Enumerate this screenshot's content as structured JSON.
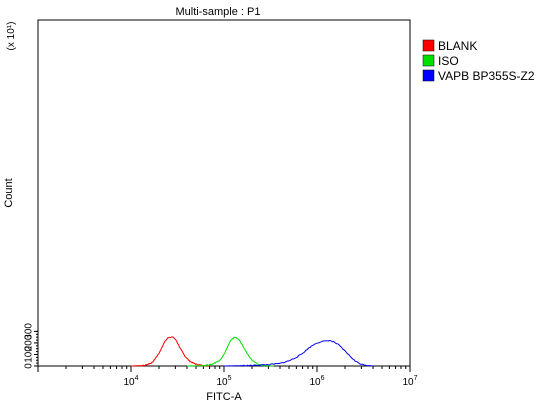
{
  "chart_data": {
    "type": "line",
    "title": "Multi-sample : P1",
    "xlabel": "FITC-A",
    "ylabel": "Count",
    "y_multiplier": "(x 10¹)",
    "x_scale": "log",
    "xlim": [
      1000,
      10000000
    ],
    "ylim": [
      0,
      300
    ],
    "x_ticks": [
      {
        "base": "10",
        "exp": "4",
        "value": 10000
      },
      {
        "base": "10",
        "exp": "5",
        "value": 100000
      },
      {
        "base": "10",
        "exp": "6",
        "value": 1000000
      },
      {
        "base": "10",
        "exp": "7",
        "value": 10000000
      }
    ],
    "y_ticks": [
      "0",
      "100",
      "200",
      "300"
    ],
    "grid": false,
    "legend_position": "right",
    "series": [
      {
        "name": "BLANK",
        "color": "#ff0000",
        "x": [
          10000,
          14000,
          17000,
          20000,
          23000,
          25000,
          27000,
          29000,
          31000,
          34000,
          38000,
          43000,
          50000,
          60000,
          70000
        ],
        "y": [
          0,
          5,
          30,
          110,
          210,
          245,
          253,
          245,
          215,
          150,
          85,
          40,
          15,
          3,
          0
        ]
      },
      {
        "name": "ISO",
        "color": "#00e000",
        "x": [
          40000,
          60000,
          75000,
          90000,
          100000,
          110000,
          120000,
          130000,
          140000,
          150000,
          160000,
          180000,
          200000,
          230000,
          260000,
          300000,
          340000
        ],
        "y": [
          0,
          3,
          15,
          50,
          100,
          170,
          230,
          250,
          240,
          210,
          170,
          100,
          50,
          15,
          5,
          2,
          0
        ]
      },
      {
        "name": "VAPB BP355S-Z2",
        "color": "#0000ff",
        "x": [
          100000,
          200000,
          300000,
          400000,
          500000,
          600000,
          700000,
          800000,
          900000,
          1000000,
          1100000,
          1200000,
          1350000,
          1500000,
          1700000,
          2000000,
          2300000,
          2600000,
          3000000,
          3500000,
          4000000
        ],
        "y": [
          0,
          5,
          12,
          22,
          45,
          75,
          110,
          150,
          180,
          200,
          210,
          215,
          222,
          210,
          185,
          130,
          80,
          40,
          15,
          5,
          0
        ]
      }
    ]
  }
}
